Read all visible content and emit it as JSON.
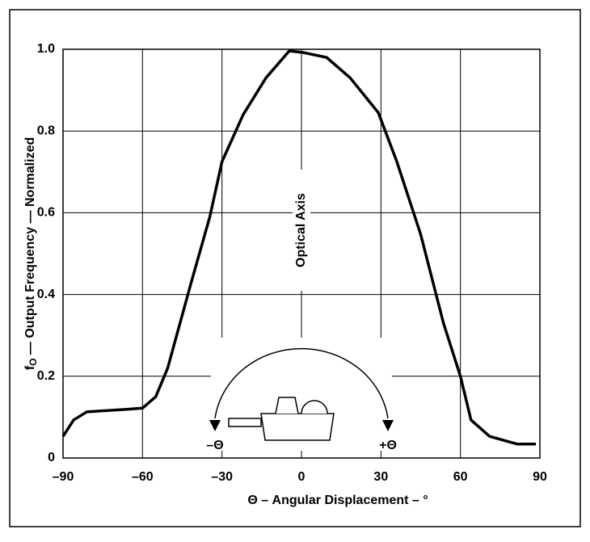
{
  "chart_data": {
    "type": "line",
    "x_label": "Θ – Angular Displacement – °",
    "y_label": {
      "symbol": "f",
      "subscript": "O",
      "text": " — Output Frequency — Normalized"
    },
    "annotations": {
      "axis": "Optical Axis",
      "minus": "–Θ",
      "plus": "+Θ"
    },
    "x": [
      -90,
      -86,
      -81,
      -66,
      -60,
      -55,
      -50.5,
      -41.6,
      -34.6,
      -30,
      -22,
      -13.4,
      -4.6,
      0.7,
      9.5,
      18.4,
      29,
      36,
      45,
      53.6,
      60,
      64,
      71,
      81.5,
      88.5
    ],
    "series": [
      {
        "color": "#000000",
        "values": [
          0.053,
          0.093,
          0.113,
          0.119,
          0.122,
          0.15,
          0.22,
          0.43,
          0.59,
          0.725,
          0.84,
          0.93,
          0.996,
          0.992,
          0.98,
          0.93,
          0.845,
          0.725,
          0.547,
          0.33,
          0.2,
          0.093,
          0.053,
          0.034,
          0.034
        ]
      }
    ],
    "xlim": [
      -90,
      90
    ],
    "xticks": [
      {
        "value": -90,
        "label": "–90"
      },
      {
        "value": -60,
        "label": "–60"
      },
      {
        "value": -30,
        "label": "–30"
      },
      0,
      30,
      60,
      90
    ],
    "ylim": [
      0,
      1
    ],
    "yticks": [
      0,
      0.2,
      0.4,
      0.6,
      0.8,
      {
        "value": 1,
        "label": "1.0"
      }
    ],
    "grid": true
  }
}
